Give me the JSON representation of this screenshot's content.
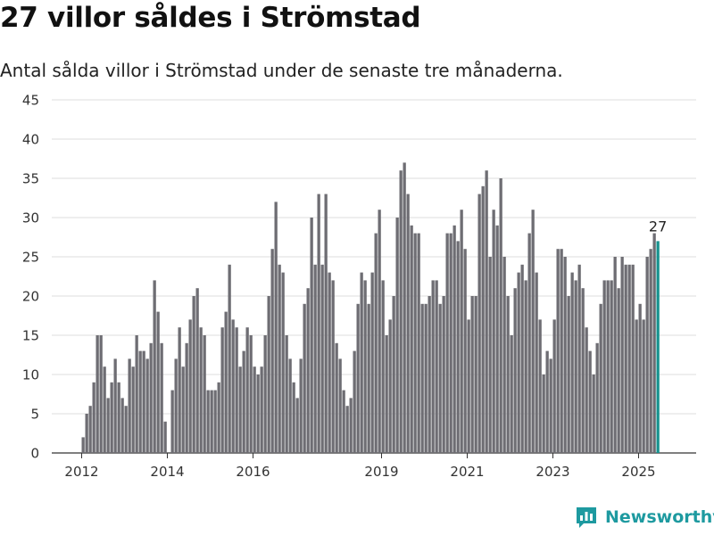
{
  "header": {
    "title": "27 villor såldes i Strömstad",
    "subtitle": "Antal sålda villor i Strömstad under de senaste tre månaderna."
  },
  "brand": {
    "name": "Newsworthy",
    "icon": "bar-chart-logo-icon",
    "color": "#1e9aa0"
  },
  "chart_data": {
    "type": "bar",
    "title": "27 villor såldes i Strömstad",
    "subtitle": "Antal sålda villor i Strömstad under de senaste tre månaderna.",
    "xlabel": "",
    "ylabel": "",
    "ylim": [
      0,
      45
    ],
    "yticks": [
      "0",
      "5",
      "10",
      "15",
      "20",
      "25",
      "30",
      "35",
      "40",
      "45"
    ],
    "xticks": [
      "2012",
      "2014",
      "2016",
      "2019",
      "2021",
      "2023",
      "2025"
    ],
    "grid": true,
    "legend": "none",
    "bar_color": "#6e6d73",
    "highlight_color": "#17938f",
    "start": "2012-01",
    "values": [
      2,
      5,
      6,
      9,
      15,
      15,
      11,
      7,
      9,
      12,
      9,
      7,
      6,
      12,
      11,
      15,
      13,
      13,
      12,
      14,
      22,
      18,
      14,
      4,
      0,
      8,
      12,
      16,
      11,
      14,
      17,
      20,
      21,
      16,
      15,
      8,
      8,
      8,
      9,
      16,
      18,
      24,
      17,
      16,
      11,
      13,
      16,
      15,
      11,
      10,
      11,
      15,
      20,
      26,
      32,
      24,
      23,
      15,
      12,
      9,
      7,
      12,
      19,
      21,
      30,
      24,
      33,
      24,
      33,
      23,
      22,
      14,
      12,
      8,
      6,
      7,
      13,
      19,
      23,
      22,
      19,
      23,
      28,
      31,
      22,
      15,
      17,
      20,
      30,
      36,
      37,
      33,
      29,
      28,
      28,
      19,
      19,
      20,
      22,
      22,
      19,
      20,
      28,
      28,
      29,
      27,
      31,
      26,
      17,
      20,
      20,
      33,
      34,
      36,
      25,
      31,
      29,
      35,
      25,
      20,
      15,
      21,
      23,
      24,
      22,
      28,
      31,
      23,
      17,
      10,
      13,
      12,
      17,
      26,
      26,
      25,
      20,
      23,
      22,
      24,
      21,
      16,
      13,
      10,
      14,
      19,
      22,
      22,
      22,
      25,
      21,
      25,
      24,
      24,
      24,
      17,
      19,
      17,
      25,
      26,
      28,
      27
    ],
    "highlight_last": true,
    "annotations": [
      {
        "text": "27",
        "target": "last"
      }
    ]
  }
}
